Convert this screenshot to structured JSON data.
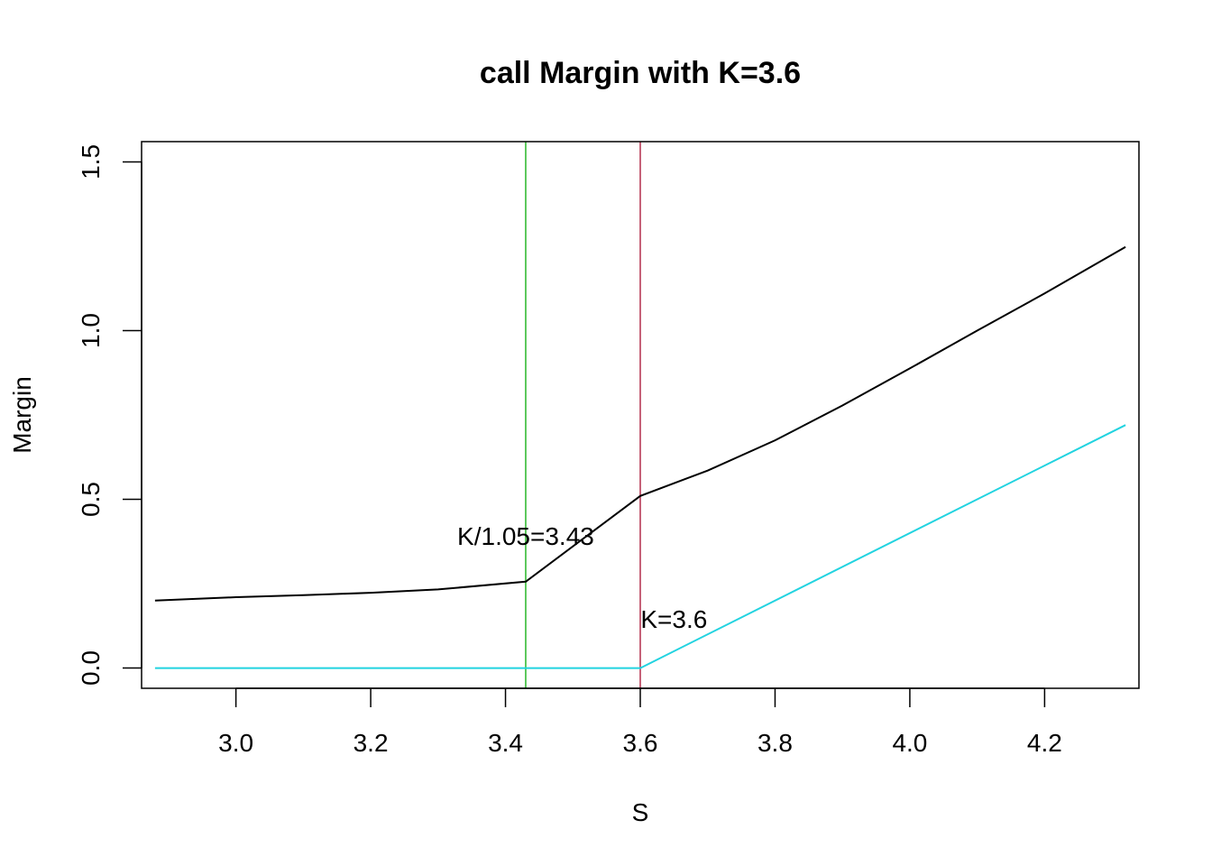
{
  "chart_data": {
    "type": "line",
    "title": "call Margin with K=3.6",
    "xlabel": "S",
    "ylabel": "Margin",
    "xlim": [
      2.86,
      4.34
    ],
    "ylim": [
      -0.06,
      1.56
    ],
    "x_ticks": [
      3.0,
      3.2,
      3.4,
      3.6,
      3.8,
      4.0,
      4.2
    ],
    "x_tick_labels": [
      "3.0",
      "3.2",
      "3.4",
      "3.6",
      "3.8",
      "4.0",
      "4.2"
    ],
    "y_ticks": [
      0.0,
      0.5,
      1.0,
      1.5
    ],
    "y_tick_labels": [
      "0.0",
      "0.5",
      "1.0",
      "1.5"
    ],
    "grid": false,
    "series": [
      {
        "color": "#000000",
        "x": [
          2.88,
          3.0,
          3.1,
          3.2,
          3.3,
          3.43,
          3.6,
          3.7,
          3.8,
          3.9,
          4.0,
          4.1,
          4.2,
          4.32
        ],
        "y": [
          0.2,
          0.21,
          0.216,
          0.223,
          0.233,
          0.256,
          0.51,
          0.585,
          0.675,
          0.778,
          0.888,
          1.0,
          1.11,
          1.248
        ]
      },
      {
        "color": "#22d3e0",
        "x": [
          2.88,
          3.6,
          4.32
        ],
        "y": [
          0.0,
          0.0,
          0.72
        ]
      }
    ],
    "vlines": [
      {
        "x": 3.43,
        "color": "#4cc34c"
      },
      {
        "x": 3.6,
        "color": "#c0506a"
      }
    ],
    "annotations": [
      {
        "text": "K/1.05=3.43",
        "x": 3.43,
        "y": 0.39
      },
      {
        "text": "K=3.6",
        "x": 3.65,
        "y": 0.145
      }
    ]
  }
}
